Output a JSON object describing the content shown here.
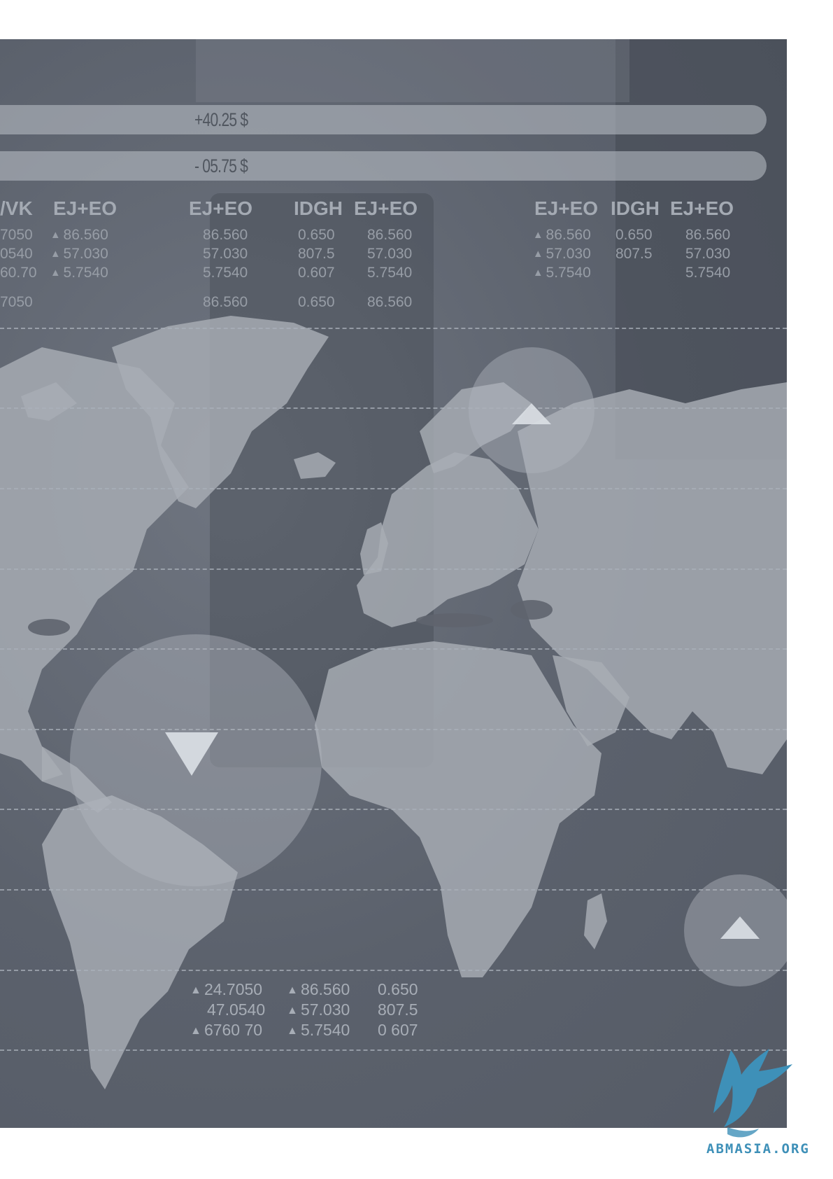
{
  "bars": [
    "+40.25 $",
    "- 05.75 $"
  ],
  "table_left": {
    "headers": [
      "/VK",
      "EJ+EO",
      "EJ+EO",
      "IDGH",
      "EJ+EO"
    ],
    "col0": [
      "7050",
      "0540",
      "60.70",
      "7050"
    ],
    "col1": [
      "86.560",
      "57.030",
      "5.7540"
    ],
    "col2": [
      "86.560",
      "57.030",
      "5.7540",
      "86.560"
    ],
    "col3": [
      "0.650",
      "807.5",
      "0.607",
      "0.650"
    ],
    "col4": [
      "86.560",
      "57.030",
      "5.7540",
      "86.560"
    ]
  },
  "table_right": {
    "headers": [
      "EJ+EO",
      "IDGH",
      "EJ+EO"
    ],
    "col0": [
      "86.560",
      "57.030",
      "5.7540"
    ],
    "col1": [
      "0.650",
      "807.5"
    ],
    "col2": [
      "86.560",
      "57.030",
      "5.7540"
    ]
  },
  "table_bottom": {
    "col0": [
      "24.7050",
      "47.0540",
      "6760 70"
    ],
    "col1": [
      "86.560",
      "57.030",
      "5.7540"
    ],
    "col2": [
      "0.650",
      "807.5",
      "0 607"
    ]
  },
  "up_glyph": "▲",
  "logo_text": "ABMASIA.ORG",
  "colors": {
    "panel": "#5f6570",
    "land": "#9ea3ab",
    "logo": "#3e90b8"
  },
  "icons": [
    "up-arrow-icon",
    "down-arrow-icon",
    "bird-logo-icon"
  ]
}
